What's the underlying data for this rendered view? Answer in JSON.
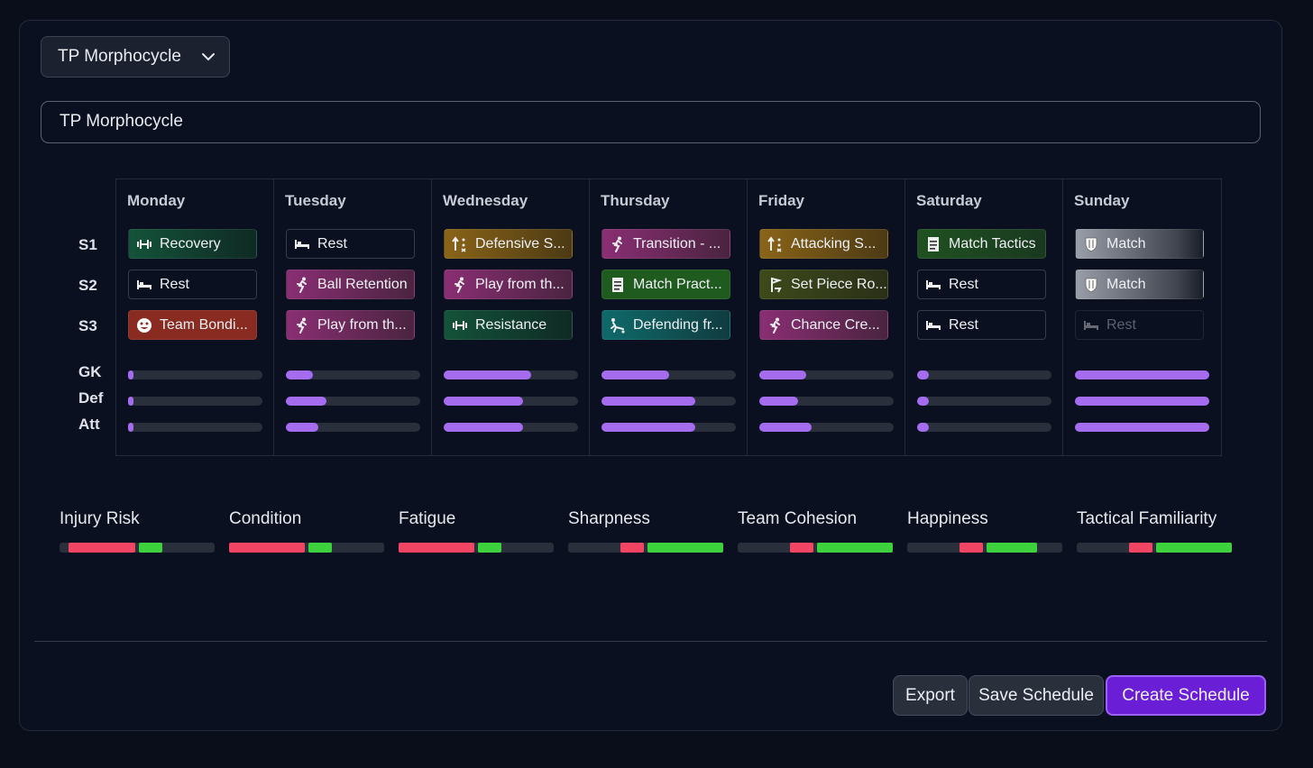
{
  "dropdown": {
    "label": "TP Morphocycle"
  },
  "schedule_name": {
    "value": "TP Morphocycle"
  },
  "row_labels": {
    "s1": "S1",
    "s2": "S2",
    "s3": "S3",
    "gk": "GK",
    "def": "Def",
    "att": "Att"
  },
  "days": [
    {
      "name": "Monday",
      "sessions": [
        {
          "label": "Recovery",
          "icon": "dumbbell-icon",
          "color": "green"
        },
        {
          "label": "Rest",
          "icon": "bed-icon",
          "color": "rest"
        },
        {
          "label": "Team Bondi...",
          "icon": "smile-icon",
          "color": "red"
        }
      ],
      "load": {
        "gk": 0.02,
        "def": 0.02,
        "att": 0.02
      }
    },
    {
      "name": "Tuesday",
      "sessions": [
        {
          "label": "Rest",
          "icon": "bed-icon",
          "color": "rest"
        },
        {
          "label": "Ball Retention",
          "icon": "run-icon",
          "color": "pink"
        },
        {
          "label": "Play from th...",
          "icon": "run-icon",
          "color": "pink"
        }
      ],
      "load": {
        "gk": 0.2,
        "def": 0.3,
        "att": 0.24
      }
    },
    {
      "name": "Wednesday",
      "sessions": [
        {
          "label": "Defensive S...",
          "icon": "tactics-icon",
          "color": "gold"
        },
        {
          "label": "Play from th...",
          "icon": "run-icon",
          "color": "pink"
        },
        {
          "label": "Resistance",
          "icon": "dumbbell-icon",
          "color": "green"
        }
      ],
      "load": {
        "gk": 0.65,
        "def": 0.59,
        "att": 0.59
      }
    },
    {
      "name": "Thursday",
      "sessions": [
        {
          "label": "Transition - ...",
          "icon": "run-icon",
          "color": "pink"
        },
        {
          "label": "Match Pract...",
          "icon": "sheet-icon",
          "color": "dgreen"
        },
        {
          "label": "Defending fr...",
          "icon": "tackle-icon",
          "color": "teal"
        }
      ],
      "load": {
        "gk": 0.5,
        "def": 0.7,
        "att": 0.7
      }
    },
    {
      "name": "Friday",
      "sessions": [
        {
          "label": "Attacking S...",
          "icon": "tactics-icon",
          "color": "gold"
        },
        {
          "label": "Set Piece Ro...",
          "icon": "flag-icon",
          "color": "olive"
        },
        {
          "label": "Chance Cre...",
          "icon": "run-icon",
          "color": "pink"
        }
      ],
      "load": {
        "gk": 0.35,
        "def": 0.29,
        "att": 0.39
      }
    },
    {
      "name": "Saturday",
      "sessions": [
        {
          "label": "Match Tactics",
          "icon": "sheet-icon",
          "color": "forest"
        },
        {
          "label": "Rest",
          "icon": "bed-icon",
          "color": "rest"
        },
        {
          "label": "Rest",
          "icon": "bed-icon",
          "color": "rest"
        }
      ],
      "load": {
        "gk": 0.09,
        "def": 0.09,
        "att": 0.09
      }
    },
    {
      "name": "Sunday",
      "sessions": [
        {
          "label": "Match",
          "icon": "shield-icon",
          "color": "grey"
        },
        {
          "label": "Match",
          "icon": "shield-icon",
          "color": "grey"
        },
        {
          "label": "Rest",
          "icon": "bed-icon",
          "color": "rest-dim"
        }
      ],
      "load": {
        "gk": 1.0,
        "def": 1.0,
        "att": 1.0
      }
    }
  ],
  "metrics": [
    {
      "name": "Injury Risk",
      "segments": [
        {
          "color": "red",
          "start": 0.06,
          "end": 0.49
        },
        {
          "color": "green",
          "start": 0.51,
          "end": 0.66
        }
      ]
    },
    {
      "name": "Condition",
      "segments": [
        {
          "color": "red",
          "start": 0.0,
          "end": 0.49
        },
        {
          "color": "green",
          "start": 0.51,
          "end": 0.66
        }
      ]
    },
    {
      "name": "Fatigue",
      "segments": [
        {
          "color": "red",
          "start": 0.0,
          "end": 0.49
        },
        {
          "color": "green",
          "start": 0.51,
          "end": 0.66
        }
      ]
    },
    {
      "name": "Sharpness",
      "segments": [
        {
          "color": "red",
          "start": 0.34,
          "end": 0.49
        },
        {
          "color": "green",
          "start": 0.51,
          "end": 1.0
        }
      ]
    },
    {
      "name": "Team Cohesion",
      "segments": [
        {
          "color": "red",
          "start": 0.34,
          "end": 0.49
        },
        {
          "color": "green",
          "start": 0.51,
          "end": 1.0
        }
      ]
    },
    {
      "name": "Happiness",
      "segments": [
        {
          "color": "red",
          "start": 0.34,
          "end": 0.49
        },
        {
          "color": "green",
          "start": 0.51,
          "end": 0.84
        }
      ]
    },
    {
      "name": "Tactical Familiarity",
      "segments": [
        {
          "color": "red",
          "start": 0.34,
          "end": 0.49
        },
        {
          "color": "green",
          "start": 0.51,
          "end": 1.0
        }
      ]
    }
  ],
  "buttons": {
    "export": "Export",
    "save": "Save Schedule",
    "create": "Create Schedule"
  },
  "colors": {
    "accent": "#a56cf0",
    "primary": "#6a1fd6",
    "risk": "#f24463",
    "good": "#3ed13e"
  }
}
